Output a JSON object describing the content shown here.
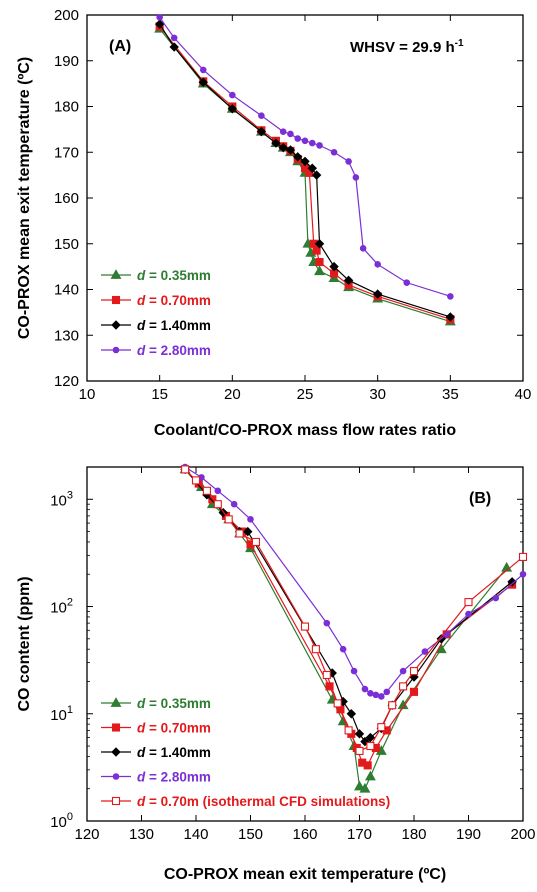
{
  "chart_data": [
    {
      "type": "line",
      "panel_label": "(A)",
      "annotation": {
        "text": "WHSV = 29.9 h",
        "superscript": "-1"
      },
      "xlabel": "Coolant/CO-PROX mass flow rates ratio",
      "ylabel": "CO-PROX mean exit temperature (ºC)",
      "xlim": [
        10,
        40
      ],
      "ylim": [
        120,
        200
      ],
      "xticks": [
        10,
        15,
        20,
        25,
        30,
        35,
        40
      ],
      "yticks": [
        120,
        130,
        140,
        150,
        160,
        170,
        180,
        190,
        200
      ],
      "legend_position": "lower-left",
      "series": [
        {
          "name": "d = 0.35mm",
          "italic_prefix": "d",
          "label_rest": " = 0.35mm",
          "color": "#2e7d32",
          "marker": "triangle",
          "filled": true,
          "x": [
            15,
            18,
            20,
            22,
            23,
            23.5,
            24,
            24.5,
            25,
            25.2,
            25.4,
            25.6,
            26,
            27,
            28,
            30,
            35
          ],
          "y": [
            197,
            185,
            179.5,
            174.5,
            172,
            171,
            170,
            168,
            165.5,
            150,
            148,
            146,
            144,
            142.5,
            140.5,
            138,
            133
          ]
        },
        {
          "name": "d = 0.70mm",
          "italic_prefix": "d",
          "label_rest": " = 0.70mm",
          "color": "#e31a1c",
          "marker": "square",
          "filled": true,
          "x": [
            15,
            18,
            20,
            22,
            23,
            23.5,
            24,
            24.5,
            25,
            25.3,
            25.6,
            25.8,
            26,
            27,
            28,
            30,
            35
          ],
          "y": [
            197.5,
            185.5,
            180,
            174.8,
            172.5,
            171.3,
            170.3,
            168.5,
            166.5,
            165.5,
            150,
            148.5,
            146,
            143.5,
            141,
            138.5,
            133.5
          ]
        },
        {
          "name": "d = 1.40mm",
          "italic_prefix": "d",
          "label_rest": " = 1.40mm",
          "color": "#000000",
          "marker": "diamond",
          "filled": true,
          "x": [
            15,
            16,
            18,
            20,
            22,
            23,
            23.5,
            24,
            24.5,
            25,
            25.5,
            25.8,
            26,
            27,
            28,
            30,
            35
          ],
          "y": [
            198,
            193,
            185.3,
            179.5,
            174.5,
            172,
            171,
            170.5,
            169,
            168,
            166.5,
            165,
            150,
            145,
            142,
            139,
            134
          ]
        },
        {
          "name": "d = 2.80mm",
          "italic_prefix": "d",
          "label_rest": " = 2.80mm",
          "color": "#7b2fd6",
          "marker": "circle",
          "filled": true,
          "x": [
            15,
            16,
            18,
            20,
            22,
            23.5,
            24,
            24.5,
            25,
            25.5,
            26,
            27,
            28,
            28.5,
            29,
            30,
            32,
            35
          ],
          "y": [
            199.5,
            195,
            188,
            182.5,
            178,
            174.5,
            174,
            173,
            172.5,
            172,
            171.5,
            170,
            168,
            164.5,
            149,
            145.5,
            141.5,
            138.5
          ]
        }
      ]
    },
    {
      "type": "line",
      "panel_label": "(B)",
      "xlabel": "CO-PROX mean exit temperature (ºC)",
      "ylabel": "CO content (ppm)",
      "xlim": [
        120,
        200
      ],
      "ylim": [
        1,
        2000
      ],
      "yscale": "log",
      "xticks": [
        120,
        130,
        140,
        150,
        160,
        170,
        180,
        190,
        200
      ],
      "yticks": [
        1,
        10,
        100,
        1000
      ],
      "ytick_base": "10",
      "ytick_exponents": [
        "0",
        "1",
        "2",
        "3"
      ],
      "legend_position": "lower-left",
      "series": [
        {
          "name": "d = 0.35mm",
          "italic_prefix": "d",
          "label_rest": " = 0.35mm",
          "color": "#2e7d32",
          "marker": "triangle",
          "filled": true,
          "x": [
            138,
            141,
            143,
            146,
            148,
            150,
            165,
            167,
            169,
            170,
            171,
            172,
            174,
            178,
            185,
            197
          ],
          "y": [
            1900,
            1300,
            900,
            650,
            480,
            350,
            13.5,
            8.5,
            5,
            2.1,
            2,
            2.6,
            4.5,
            12,
            40,
            230
          ]
        },
        {
          "name": "d = 0.70mm",
          "italic_prefix": "d",
          "label_rest": " = 0.70mm",
          "color": "#e31a1c",
          "marker": "square",
          "filled": true,
          "x": [
            138,
            140.5,
            143,
            145.5,
            148.5,
            150,
            164.5,
            166.5,
            168.5,
            169.5,
            170.5,
            171.5,
            173,
            175,
            180,
            186,
            198
          ],
          "y": [
            1900,
            1400,
            1000,
            700,
            500,
            380,
            18,
            11,
            6.5,
            4.8,
            3.5,
            3.3,
            4.8,
            7,
            16,
            55,
            160
          ]
        },
        {
          "name": "d = 1.40mm",
          "italic_prefix": "d",
          "label_rest": " = 1.40mm",
          "color": "#000000",
          "marker": "diamond",
          "filled": true,
          "x": [
            138,
            142,
            145,
            148,
            149.5,
            165,
            167,
            168.5,
            170,
            171,
            172,
            174,
            176,
            180,
            185,
            198
          ],
          "y": [
            1900,
            1100,
            750,
            500,
            500,
            24,
            13,
            10,
            6.5,
            5.5,
            6,
            7.3,
            12,
            22,
            50,
            170
          ]
        },
        {
          "name": "d = 2.80mm",
          "italic_prefix": "d",
          "label_rest": " = 2.80mm",
          "color": "#7b2fd6",
          "marker": "circle",
          "filled": true,
          "x": [
            138,
            141,
            144,
            147,
            150,
            164,
            167,
            169,
            171,
            172,
            173,
            174,
            175,
            178,
            182,
            186,
            190,
            195,
            200
          ],
          "y": [
            2000,
            1600,
            1200,
            900,
            650,
            70,
            40,
            25,
            17,
            15.5,
            15,
            14.5,
            16,
            25,
            38,
            55,
            85,
            120,
            200
          ]
        },
        {
          "name": "d = 0.70m (isothermal CFD simulations)",
          "italic_prefix": "d",
          "label_rest": " = 0.70m (isothermal CFD simulations)",
          "color": "#e31a1c",
          "marker": "square",
          "filled": false,
          "x": [
            138,
            140,
            142,
            144,
            146,
            148,
            151,
            160,
            162,
            164,
            166,
            168,
            170,
            172,
            174,
            176,
            178,
            180,
            190,
            200
          ],
          "y": [
            1900,
            1500,
            1200,
            900,
            650,
            480,
            400,
            65,
            40,
            23,
            12.5,
            7,
            4.5,
            5,
            7.5,
            12,
            18,
            25,
            110,
            290
          ]
        }
      ]
    }
  ]
}
